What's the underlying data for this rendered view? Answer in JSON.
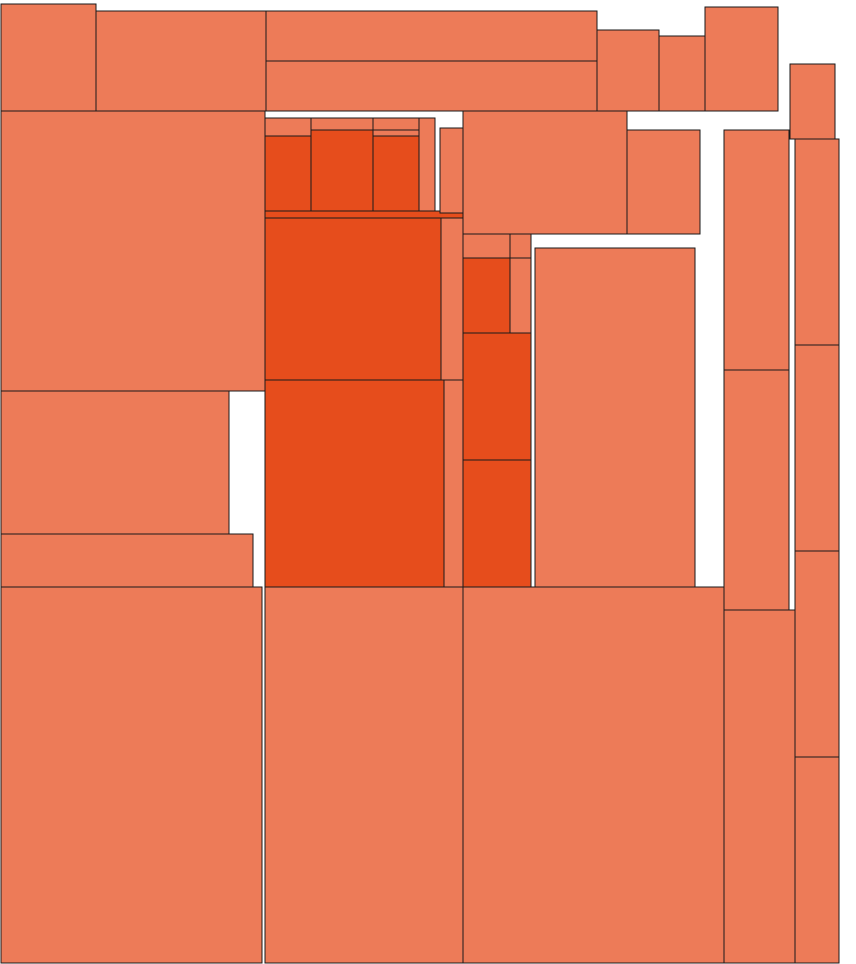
{
  "chart_data": {
    "type": "treemap",
    "title": "",
    "labels_shown": false,
    "colors": {
      "light": "#ED7B58",
      "dark": "#E64D1C",
      "background": "#FFFFFF",
      "border": "#1A1A1A"
    },
    "cells": [
      {
        "id": "c01",
        "value": 10080,
        "tone": "light"
      },
      {
        "id": "c02",
        "value": 18020,
        "tone": "light"
      },
      {
        "id": "c03",
        "value": 16180,
        "tone": "light"
      },
      {
        "id": "c04",
        "value": 16180,
        "tone": "light"
      },
      {
        "id": "c05",
        "value": 4860,
        "tone": "light"
      },
      {
        "id": "c06",
        "value": 3600,
        "tone": "light"
      },
      {
        "id": "c07",
        "value": 7300,
        "tone": "light"
      },
      {
        "id": "c08",
        "value": 3420,
        "tone": "light"
      },
      {
        "id": "c09",
        "value": 73220,
        "tone": "light"
      },
      {
        "id": "c10",
        "value": 32000,
        "tone": "light"
      },
      {
        "id": "c11",
        "value": 13200,
        "tone": "light"
      },
      {
        "id": "c12",
        "value": 98000,
        "tone": "light"
      },
      {
        "id": "c13",
        "value": 74500,
        "tone": "light"
      },
      {
        "id": "c14",
        "value": 98000,
        "tone": "light"
      },
      {
        "id": "c15",
        "value": 900,
        "tone": "light"
      },
      {
        "id": "c16",
        "value": 3700,
        "tone": "dark"
      },
      {
        "id": "c17",
        "value": 680,
        "tone": "light"
      },
      {
        "id": "c18",
        "value": 5000,
        "tone": "dark"
      },
      {
        "id": "c19",
        "value": 700,
        "tone": "light"
      },
      {
        "id": "c20",
        "value": 3500,
        "tone": "dark"
      },
      {
        "id": "c21",
        "value": 1200,
        "tone": "light"
      },
      {
        "id": "c22",
        "value": 1300,
        "tone": "dark"
      },
      {
        "id": "c23",
        "value": 28500,
        "tone": "dark"
      },
      {
        "id": "c24",
        "value": 3500,
        "tone": "light"
      },
      {
        "id": "c25",
        "value": 37100,
        "tone": "dark"
      },
      {
        "id": "c26",
        "value": 4000,
        "tone": "light"
      },
      {
        "id": "c27",
        "value": 20300,
        "tone": "light"
      },
      {
        "id": "c28",
        "value": 7700,
        "tone": "light"
      },
      {
        "id": "c29",
        "value": 1150,
        "tone": "light"
      },
      {
        "id": "c30",
        "value": 500,
        "tone": "light"
      },
      {
        "id": "c31",
        "value": 3500,
        "tone": "dark"
      },
      {
        "id": "c32",
        "value": 1800,
        "tone": "light"
      },
      {
        "id": "c33",
        "value": 8400,
        "tone": "dark"
      },
      {
        "id": "c34",
        "value": 8400,
        "tone": "dark"
      },
      {
        "id": "c35",
        "value": 54100,
        "tone": "light"
      },
      {
        "id": "c36",
        "value": 15500,
        "tone": "light"
      },
      {
        "id": "c37",
        "value": 15500,
        "tone": "light"
      },
      {
        "id": "c38",
        "value": 3400,
        "tone": "light"
      },
      {
        "id": "c39",
        "value": 9250,
        "tone": "light"
      },
      {
        "id": "c40",
        "value": 9250,
        "tone": "light"
      },
      {
        "id": "c41",
        "value": 9250,
        "tone": "light"
      },
      {
        "id": "c42",
        "value": 9250,
        "tone": "light"
      },
      {
        "id": "c43",
        "value": 25000,
        "tone": "light"
      }
    ]
  }
}
